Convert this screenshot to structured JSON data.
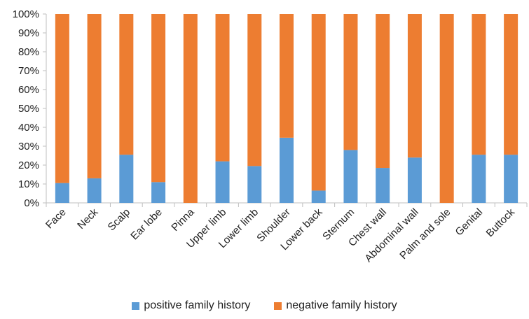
{
  "chart_data": {
    "type": "bar",
    "stacked": true,
    "percent": true,
    "categories": [
      "Face",
      "Neck",
      "Scalp",
      "Ear lobe",
      "Pinna",
      "Upper limb",
      "Lower limb",
      "Shoulder",
      "Lower back",
      "Sternum",
      "Chest wall",
      "Abdominal wall",
      "Palm and sole",
      "Genital",
      "Buttock"
    ],
    "series": [
      {
        "name": "positive family history",
        "color": "#5b9bd5",
        "values": [
          10.5,
          13,
          25.5,
          11,
          0,
          22,
          19.5,
          34.5,
          6.5,
          28,
          18.5,
          24,
          0,
          25.5,
          25.5
        ]
      },
      {
        "name": "negative family history",
        "color": "#ed7d31",
        "values": [
          89.5,
          87,
          74.5,
          89,
          100,
          78,
          80.5,
          65.5,
          93.5,
          72,
          81.5,
          76,
          100,
          74.5,
          74.5
        ]
      }
    ],
    "yticks": [
      "0%",
      "10%",
      "20%",
      "30%",
      "40%",
      "50%",
      "60%",
      "70%",
      "80%",
      "90%",
      "100%"
    ],
    "ylim": [
      0,
      100
    ],
    "grid": false,
    "legend_position": "bottom"
  }
}
